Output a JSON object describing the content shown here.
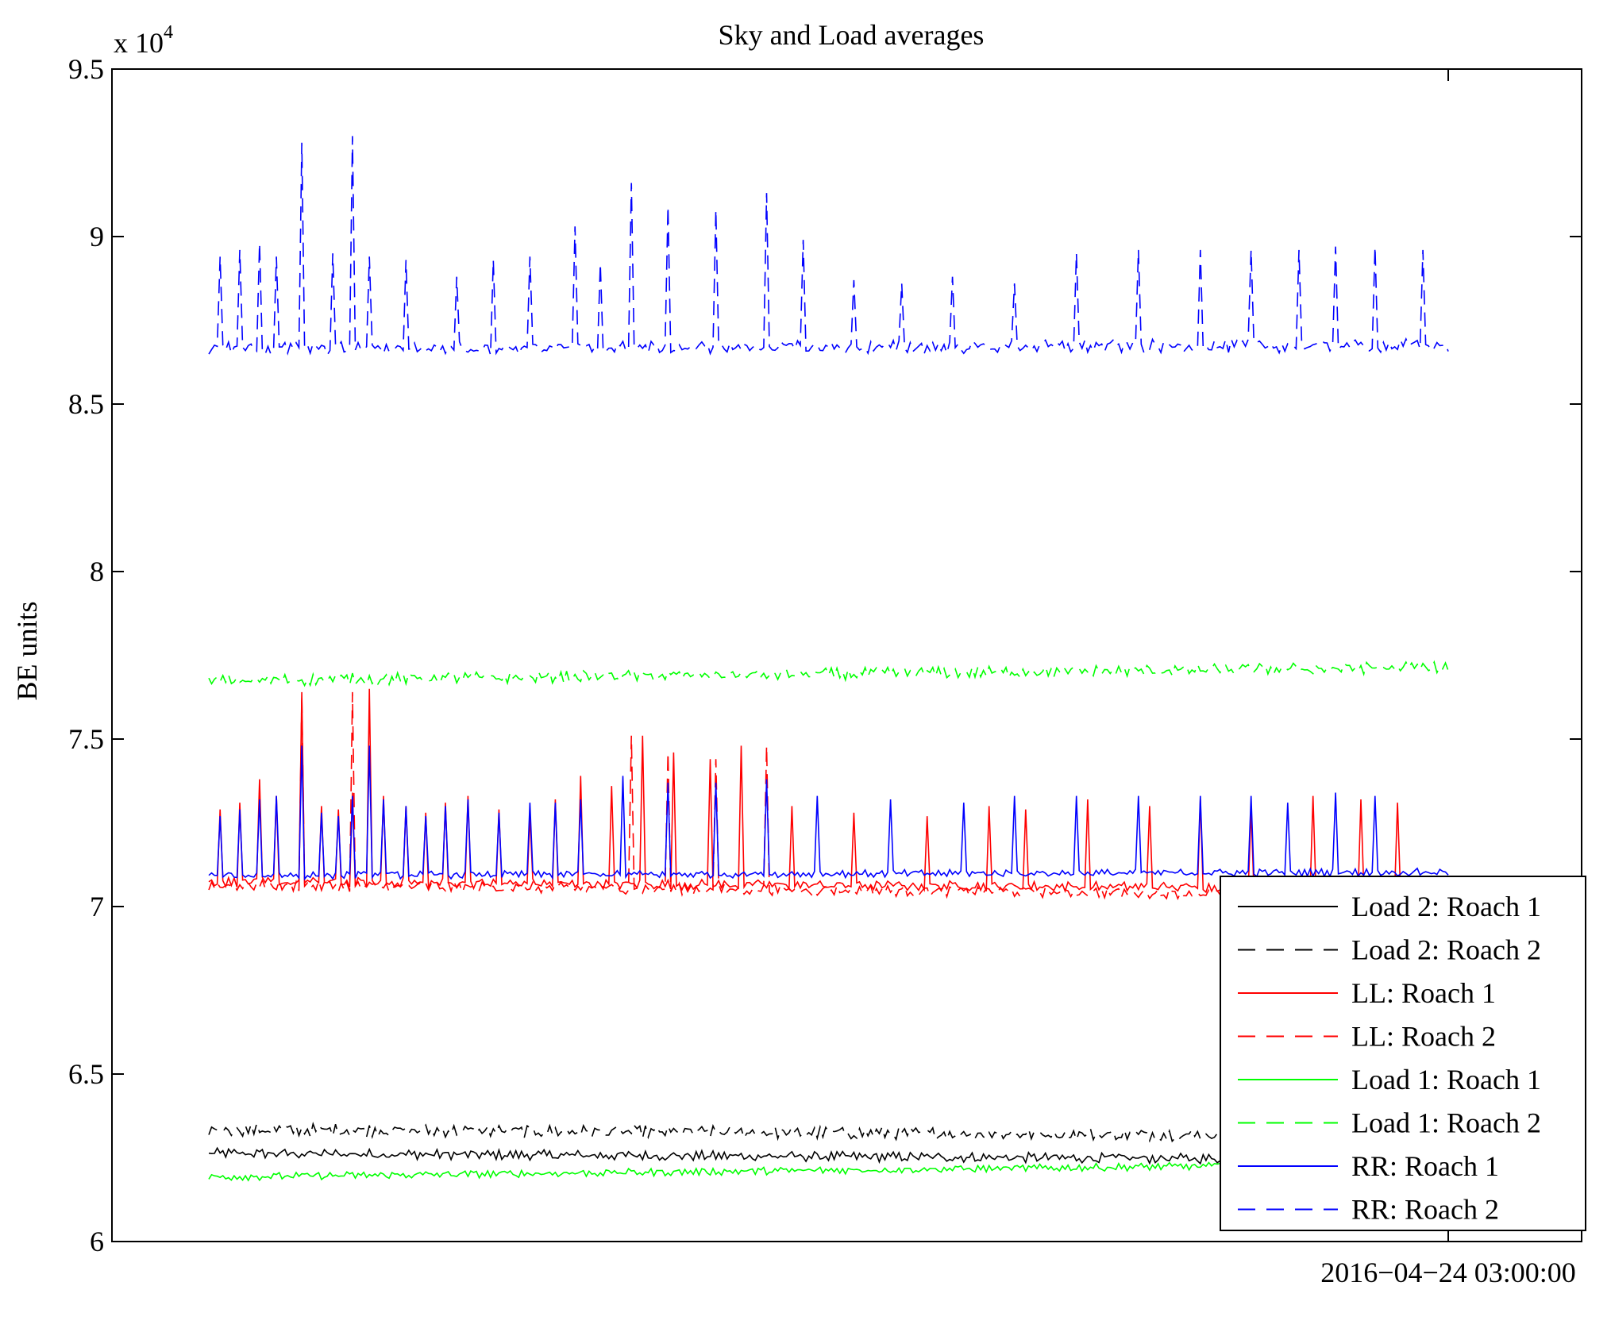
{
  "chart_data": {
    "type": "line",
    "title": "Sky and Load averages",
    "ylabel": "BE units",
    "xlabel": "",
    "y_multiplier": "x 10",
    "y_multiplier_exponent": "4",
    "ylim": [
      60000,
      95000
    ],
    "yticks": [
      {
        "value": 60000,
        "label": "6"
      },
      {
        "value": 65000,
        "label": "6.5"
      },
      {
        "value": 70000,
        "label": "7"
      },
      {
        "value": 75000,
        "label": "7.5"
      },
      {
        "value": 80000,
        "label": "8"
      },
      {
        "value": 85000,
        "label": "8.5"
      },
      {
        "value": 90000,
        "label": "9"
      },
      {
        "value": 95000,
        "label": "9.5"
      }
    ],
    "xtick_label": "2016−04−24 03:00:00",
    "grid": false,
    "legend_position": "bottom-right",
    "samples": 441,
    "series": [
      {
        "name": "Load 2: Roach 1",
        "color": "#000000",
        "dash": "solid",
        "level_start": 62600,
        "level_end": 62400,
        "jitter": 120,
        "spikes": []
      },
      {
        "name": "Load 2: Roach 2",
        "color": "#000000",
        "dash": "dashed",
        "level_start": 63300,
        "level_end": 63100,
        "jitter": 150,
        "spikes": []
      },
      {
        "name": "LL: Roach 1",
        "color": "#ff0000",
        "dash": "solid",
        "level_start": 70700,
        "level_end": 70500,
        "jitter": 120,
        "spikes": [
          [
            0.01,
            72900
          ],
          [
            0.025,
            73100
          ],
          [
            0.04,
            73800
          ],
          [
            0.055,
            73300
          ],
          [
            0.075,
            76400
          ],
          [
            0.09,
            73000
          ],
          [
            0.105,
            72900
          ],
          [
            0.115,
            73400
          ],
          [
            0.13,
            76500
          ],
          [
            0.14,
            73300
          ],
          [
            0.16,
            73000
          ],
          [
            0.175,
            72800
          ],
          [
            0.19,
            73100
          ],
          [
            0.21,
            73300
          ],
          [
            0.235,
            72900
          ],
          [
            0.26,
            72700
          ],
          [
            0.28,
            73200
          ],
          [
            0.3,
            73900
          ],
          [
            0.325,
            73600
          ],
          [
            0.35,
            75100
          ],
          [
            0.375,
            74600
          ],
          [
            0.405,
            74400
          ],
          [
            0.43,
            74800
          ],
          [
            0.47,
            73000
          ],
          [
            0.52,
            72800
          ],
          [
            0.58,
            72700
          ],
          [
            0.63,
            73000
          ],
          [
            0.66,
            72900
          ],
          [
            0.71,
            73200
          ],
          [
            0.76,
            73000
          ],
          [
            0.8,
            73200
          ],
          [
            0.84,
            72900
          ],
          [
            0.89,
            73300
          ],
          [
            0.93,
            73200
          ],
          [
            0.96,
            73100
          ]
        ]
      },
      {
        "name": "LL: Roach 2",
        "color": "#ff0000",
        "dash": "dashed",
        "level_start": 70600,
        "level_end": 70300,
        "jitter": 130,
        "spikes": [
          [
            0.075,
            76300
          ],
          [
            0.115,
            76400
          ],
          [
            0.34,
            75100
          ],
          [
            0.37,
            74600
          ],
          [
            0.41,
            74400
          ],
          [
            0.45,
            74800
          ]
        ]
      },
      {
        "name": "Load 1: Roach 1",
        "color": "#00ff00",
        "dash": "solid",
        "level_start": 61900,
        "level_end": 62300,
        "jitter": 90,
        "spikes": []
      },
      {
        "name": "Load 1: Roach 2",
        "color": "#00ff00",
        "dash": "dashed",
        "level_start": 76700,
        "level_end": 77100,
        "jitter": 140,
        "spikes": []
      },
      {
        "name": "RR: Roach 1",
        "color": "#0000ff",
        "dash": "solid",
        "level_start": 70900,
        "level_end": 71000,
        "jitter": 90,
        "spikes": [
          [
            0.01,
            72700
          ],
          [
            0.025,
            72900
          ],
          [
            0.04,
            73200
          ],
          [
            0.055,
            73300
          ],
          [
            0.075,
            74800
          ],
          [
            0.09,
            72800
          ],
          [
            0.105,
            72700
          ],
          [
            0.115,
            73300
          ],
          [
            0.13,
            74800
          ],
          [
            0.14,
            73200
          ],
          [
            0.16,
            73000
          ],
          [
            0.175,
            72700
          ],
          [
            0.19,
            73000
          ],
          [
            0.21,
            73200
          ],
          [
            0.235,
            72800
          ],
          [
            0.26,
            73100
          ],
          [
            0.28,
            73100
          ],
          [
            0.3,
            73200
          ],
          [
            0.335,
            73900
          ],
          [
            0.37,
            73700
          ],
          [
            0.41,
            73700
          ],
          [
            0.45,
            73800
          ],
          [
            0.49,
            73300
          ],
          [
            0.55,
            73200
          ],
          [
            0.61,
            73100
          ],
          [
            0.65,
            73300
          ],
          [
            0.7,
            73300
          ],
          [
            0.75,
            73300
          ],
          [
            0.8,
            73300
          ],
          [
            0.84,
            73300
          ],
          [
            0.87,
            73100
          ],
          [
            0.91,
            73400
          ],
          [
            0.94,
            73300
          ]
        ]
      },
      {
        "name": "RR: Roach 2",
        "color": "#0000ff",
        "dash": "dashed",
        "level_start": 86600,
        "level_end": 86700,
        "jitter": 160,
        "spikes": [
          [
            0.01,
            89400
          ],
          [
            0.025,
            89600
          ],
          [
            0.04,
            89800
          ],
          [
            0.055,
            89400
          ],
          [
            0.075,
            92800
          ],
          [
            0.1,
            89500
          ],
          [
            0.115,
            93000
          ],
          [
            0.13,
            89400
          ],
          [
            0.16,
            89300
          ],
          [
            0.2,
            88800
          ],
          [
            0.23,
            89300
          ],
          [
            0.26,
            89400
          ],
          [
            0.295,
            90300
          ],
          [
            0.315,
            89200
          ],
          [
            0.34,
            91600
          ],
          [
            0.37,
            90900
          ],
          [
            0.41,
            90800
          ],
          [
            0.45,
            91300
          ],
          [
            0.48,
            89900
          ],
          [
            0.52,
            88700
          ],
          [
            0.56,
            88600
          ],
          [
            0.6,
            88800
          ],
          [
            0.65,
            88600
          ],
          [
            0.7,
            89500
          ],
          [
            0.75,
            89600
          ],
          [
            0.8,
            89600
          ],
          [
            0.84,
            89600
          ],
          [
            0.88,
            89600
          ],
          [
            0.91,
            89700
          ],
          [
            0.94,
            89700
          ],
          [
            0.98,
            89600
          ]
        ]
      }
    ]
  }
}
